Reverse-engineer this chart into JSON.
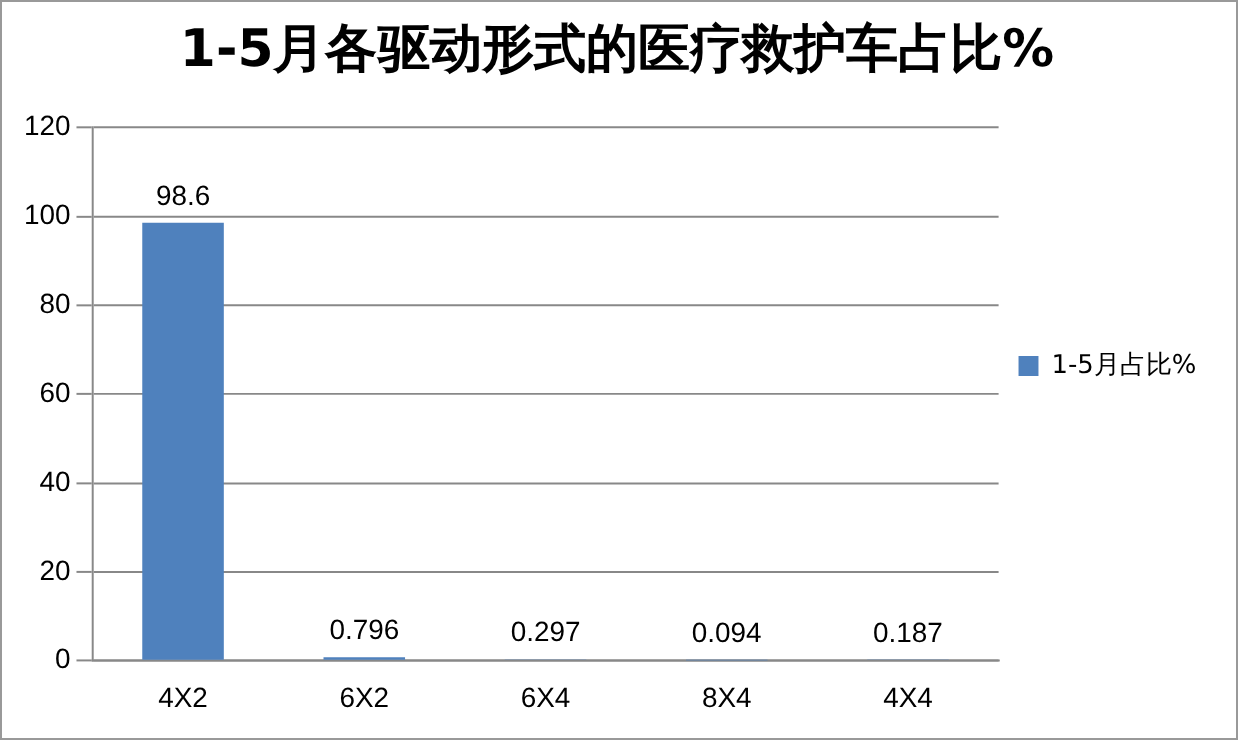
{
  "chart_data": {
    "type": "bar",
    "title": "1-5月各驱动形式的医疗救护车占比%",
    "categories": [
      "4X2",
      "6X2",
      "6X4",
      "8X4",
      "4X4"
    ],
    "series": [
      {
        "name": "1-5月占比%",
        "color": "#4f81bd",
        "values": [
          98.6,
          0.796,
          0.297,
          0.094,
          0.187
        ]
      }
    ],
    "ylim": [
      0,
      120
    ],
    "yticks": [
      0,
      20,
      40,
      60,
      80,
      100,
      120
    ],
    "grid": "y",
    "legend": "right",
    "data_labels": true
  }
}
